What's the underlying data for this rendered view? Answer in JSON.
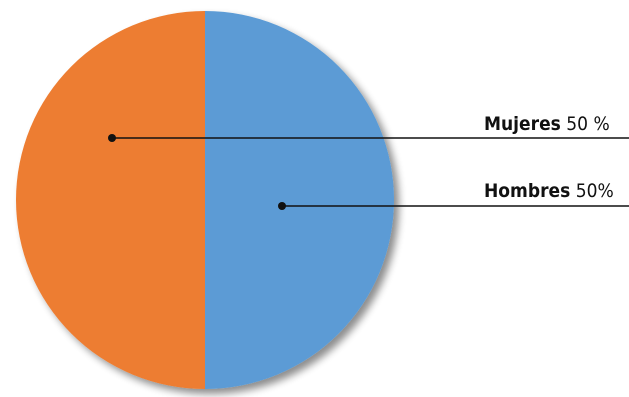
{
  "chart_data": {
    "type": "pie",
    "title": "",
    "slices": [
      {
        "name": "Hombres",
        "value": 50,
        "value_text": "50%",
        "color": "#5b9bd5"
      },
      {
        "name": "Mujeres",
        "value": 50,
        "value_text": "50 %",
        "color": "#ed7d31"
      }
    ],
    "legend": "none",
    "data_labels": "leader-lines-right"
  }
}
